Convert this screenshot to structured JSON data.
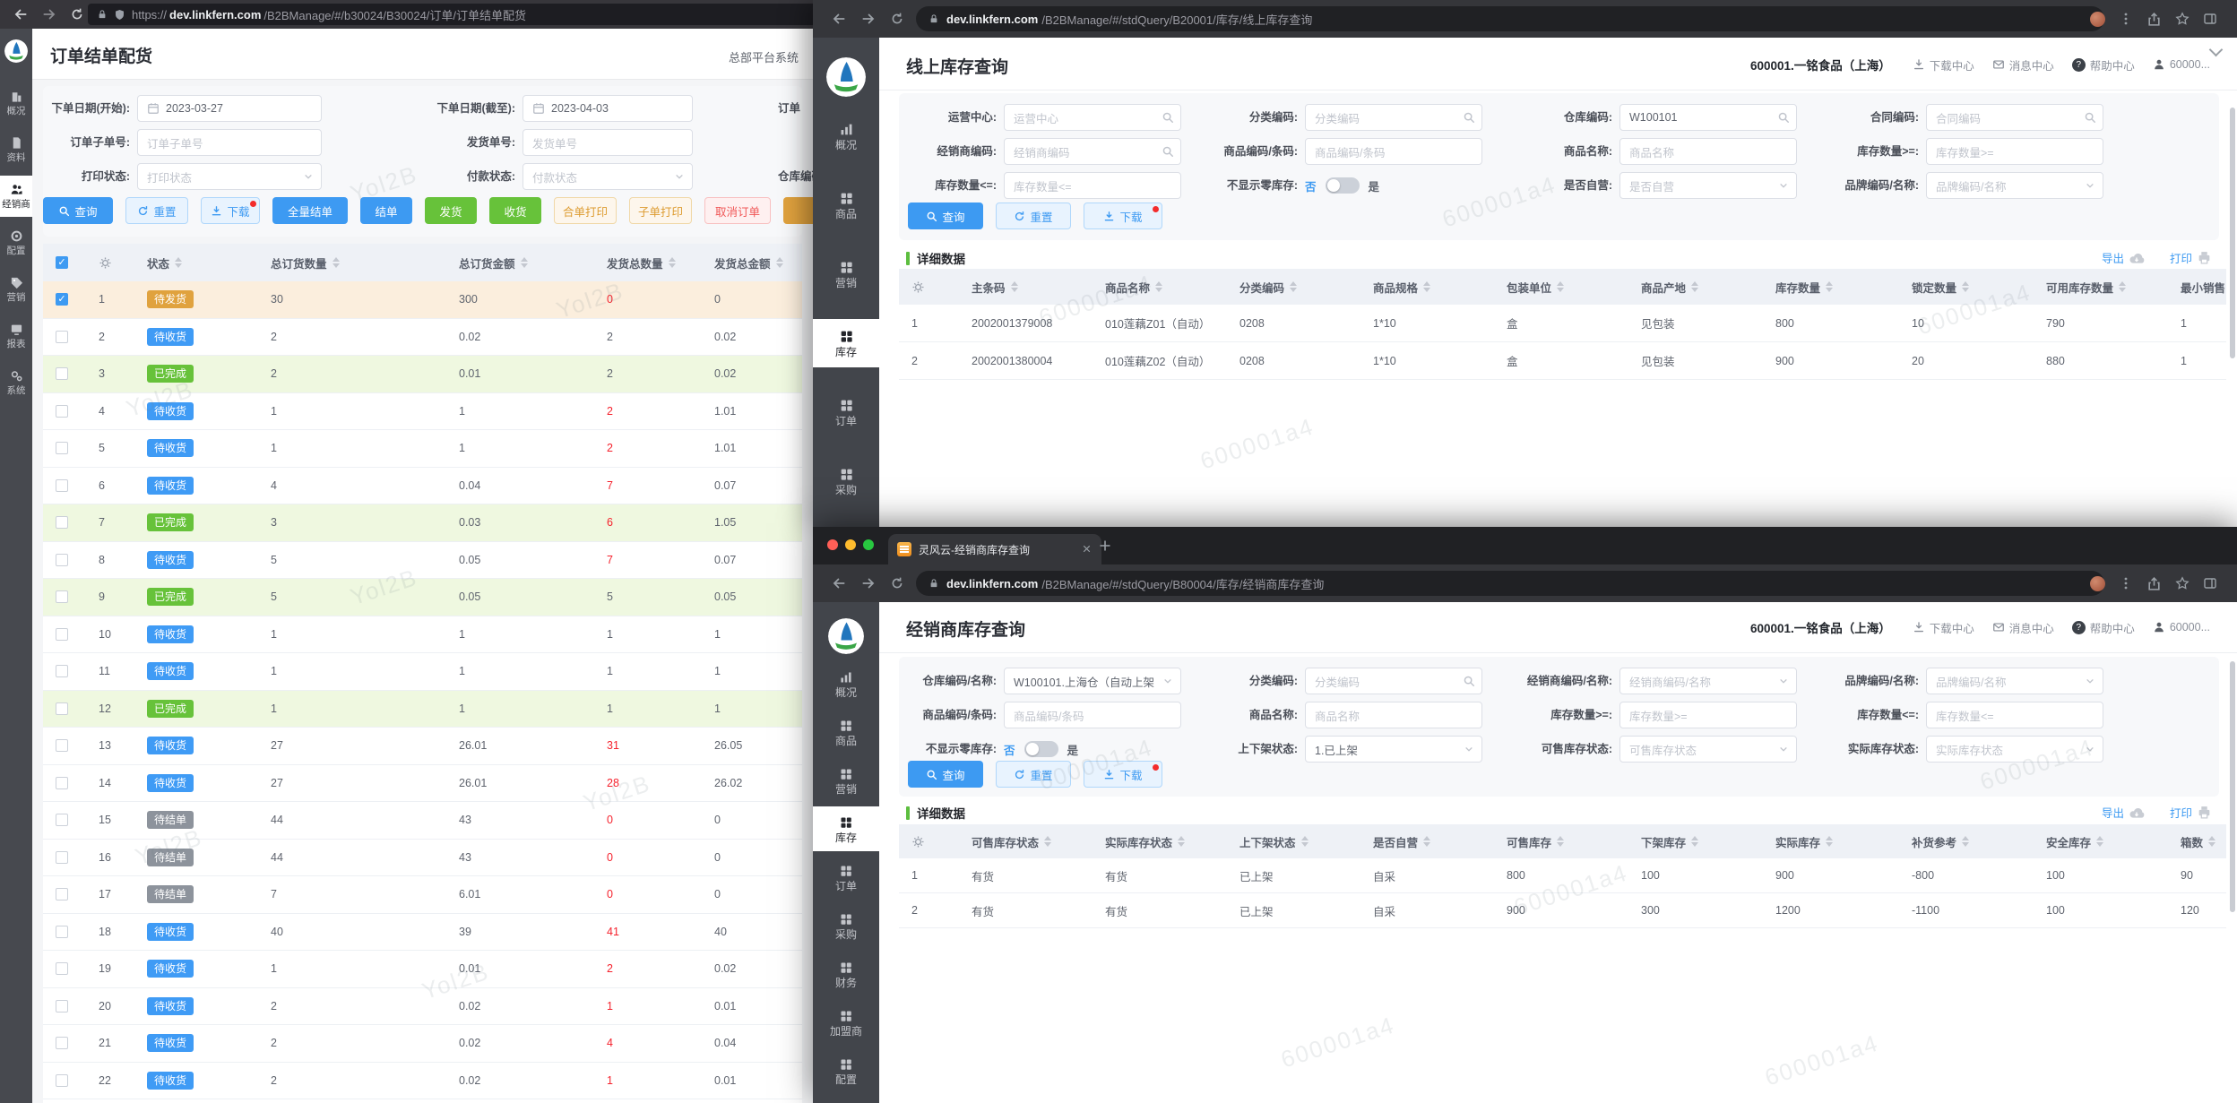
{
  "account": {
    "company": "600001.一铭食品（上海）",
    "links": [
      {
        "icon": "downloadline",
        "label": "下载中心"
      },
      {
        "icon": "mail",
        "label": "消息中心"
      },
      {
        "icon": "help",
        "label": "帮助中心"
      },
      {
        "icon": "user",
        "label": "60000..."
      }
    ]
  },
  "left": {
    "url": {
      "scheme": "https://",
      "domain": "dev.linkfern.com",
      "path": "/B2BManage/#/b30024/B30024/订单/订单结单配货"
    },
    "title": "订单结单配货",
    "header_right": "总部平台系统",
    "watermark": "Yol2B",
    "sidebar": [
      {
        "icon": "building",
        "label": "概况"
      },
      {
        "icon": "document",
        "label": "资料"
      },
      {
        "icon": "dealer",
        "label": "经销商",
        "active": true
      },
      {
        "icon": "config",
        "label": "配置"
      },
      {
        "icon": "tag",
        "label": "营销"
      },
      {
        "icon": "report",
        "label": "报表"
      },
      {
        "icon": "system",
        "label": "系统"
      }
    ],
    "filters": [
      [
        {
          "label": "下单日期(开始):",
          "type": "date",
          "value": "2023-03-27"
        },
        {
          "label": "下单日期(截至):",
          "type": "date",
          "value": "2023-04-03"
        },
        {
          "label": "订单",
          "type": "cut"
        }
      ],
      [
        {
          "label": "订单子单号:",
          "type": "text",
          "ph": "订单子单号"
        },
        {
          "label": "发货单号:",
          "type": "text",
          "ph": "发货单号"
        }
      ],
      [
        {
          "label": "打印状态:",
          "type": "select",
          "ph": "打印状态"
        },
        {
          "label": "付款状态:",
          "type": "select",
          "ph": "付款状态"
        },
        {
          "label": "仓库编码",
          "type": "cut"
        }
      ]
    ],
    "buttons": [
      {
        "label": "查询",
        "style": "primary",
        "icon": "search"
      },
      {
        "label": "重置",
        "style": "light",
        "icon": "refresh"
      },
      {
        "label": "下载",
        "style": "light",
        "icon": "download",
        "dot": true
      },
      {
        "label": "全量结单",
        "style": "primary"
      },
      {
        "label": "结单",
        "style": "primary"
      },
      {
        "label": "发货",
        "style": "success"
      },
      {
        "label": "收货",
        "style": "success"
      },
      {
        "label": "合单打印",
        "style": "warnp"
      },
      {
        "label": "子单打印",
        "style": "warnp"
      },
      {
        "label": "取消订单",
        "style": "dangerp"
      },
      {
        "label": "",
        "style": "warns"
      }
    ],
    "table": {
      "columns": [
        "状态",
        "总订货数量",
        "总订货金额",
        "发货总数量",
        "发货总金额"
      ],
      "rows": [
        {
          "n": 1,
          "checked": true,
          "bg": "sel",
          "status": "待发货",
          "tone": "warning",
          "values": [
            "30",
            "300",
            "0",
            "0"
          ],
          "red": [
            2
          ]
        },
        {
          "n": 2,
          "checked": false,
          "bg": "",
          "status": "待收货",
          "tone": "primary",
          "values": [
            "2",
            "0.02",
            "2",
            "0.02"
          ],
          "red": []
        },
        {
          "n": 3,
          "checked": false,
          "bg": "done",
          "status": "已完成",
          "tone": "success",
          "values": [
            "2",
            "0.01",
            "2",
            "0.02"
          ],
          "red": []
        },
        {
          "n": 4,
          "checked": false,
          "bg": "",
          "status": "待收货",
          "tone": "primary",
          "values": [
            "1",
            "1",
            "2",
            "1.01"
          ],
          "red": [
            2
          ]
        },
        {
          "n": 5,
          "checked": false,
          "bg": "",
          "status": "待收货",
          "tone": "primary",
          "values": [
            "1",
            "1",
            "2",
            "1.01"
          ],
          "red": [
            2
          ]
        },
        {
          "n": 6,
          "checked": false,
          "bg": "",
          "status": "待收货",
          "tone": "primary",
          "values": [
            "4",
            "0.04",
            "7",
            "0.07"
          ],
          "red": [
            2
          ]
        },
        {
          "n": 7,
          "checked": false,
          "bg": "done",
          "status": "已完成",
          "tone": "success",
          "values": [
            "3",
            "0.03",
            "6",
            "1.05"
          ],
          "red": [
            2
          ]
        },
        {
          "n": 8,
          "checked": false,
          "bg": "",
          "status": "待收货",
          "tone": "primary",
          "values": [
            "5",
            "0.05",
            "7",
            "0.07"
          ],
          "red": [
            2
          ]
        },
        {
          "n": 9,
          "checked": false,
          "bg": "done",
          "status": "已完成",
          "tone": "success",
          "values": [
            "5",
            "0.05",
            "5",
            "0.05"
          ],
          "red": []
        },
        {
          "n": 10,
          "checked": false,
          "bg": "",
          "status": "待收货",
          "tone": "primary",
          "values": [
            "1",
            "1",
            "1",
            "1"
          ],
          "red": []
        },
        {
          "n": 11,
          "checked": false,
          "bg": "",
          "status": "待收货",
          "tone": "primary",
          "values": [
            "1",
            "1",
            "1",
            "1"
          ],
          "red": []
        },
        {
          "n": 12,
          "checked": false,
          "bg": "done",
          "status": "已完成",
          "tone": "success",
          "values": [
            "1",
            "1",
            "1",
            "1"
          ],
          "red": []
        },
        {
          "n": 13,
          "checked": false,
          "bg": "",
          "status": "待收货",
          "tone": "primary",
          "values": [
            "27",
            "26.01",
            "31",
            "26.05"
          ],
          "red": [
            2
          ]
        },
        {
          "n": 14,
          "checked": false,
          "bg": "",
          "status": "待收货",
          "tone": "primary",
          "values": [
            "27",
            "26.01",
            "28",
            "26.02"
          ],
          "red": [
            2
          ]
        },
        {
          "n": 15,
          "checked": false,
          "bg": "",
          "status": "待结单",
          "tone": "info",
          "values": [
            "44",
            "43",
            "0",
            "0"
          ],
          "red": [
            2
          ]
        },
        {
          "n": 16,
          "checked": false,
          "bg": "",
          "status": "待结单",
          "tone": "info",
          "values": [
            "44",
            "43",
            "0",
            "0"
          ],
          "red": [
            2
          ]
        },
        {
          "n": 17,
          "checked": false,
          "bg": "",
          "status": "待结单",
          "tone": "info",
          "values": [
            "7",
            "6.01",
            "0",
            "0"
          ],
          "red": [
            2
          ]
        },
        {
          "n": 18,
          "checked": false,
          "bg": "",
          "status": "待收货",
          "tone": "primary",
          "values": [
            "40",
            "39",
            "41",
            "40"
          ],
          "red": [
            2
          ]
        },
        {
          "n": 19,
          "checked": false,
          "bg": "",
          "status": "待收货",
          "tone": "primary",
          "values": [
            "1",
            "0.01",
            "2",
            "0.02"
          ],
          "red": [
            2
          ]
        },
        {
          "n": 20,
          "checked": false,
          "bg": "",
          "status": "待收货",
          "tone": "primary",
          "values": [
            "2",
            "0.02",
            "1",
            "0.01"
          ],
          "red": [
            2
          ]
        },
        {
          "n": 21,
          "checked": false,
          "bg": "",
          "status": "待收货",
          "tone": "primary",
          "values": [
            "2",
            "0.02",
            "4",
            "0.04"
          ],
          "red": [
            2
          ]
        },
        {
          "n": 22,
          "checked": false,
          "bg": "",
          "status": "待收货",
          "tone": "primary",
          "values": [
            "2",
            "0.02",
            "1",
            "0.01"
          ],
          "red": [
            2
          ]
        }
      ]
    }
  },
  "top_right": {
    "url": {
      "domain": "dev.linkfern.com",
      "path": "/B2BManage/#/stdQuery/B20001/库存/线上库存查询"
    },
    "title": "线上库存查询",
    "watermark": "600001a4",
    "sidebar": [
      {
        "icon": "chart",
        "label": "概况"
      },
      {
        "icon": "grid",
        "label": "商品"
      },
      {
        "icon": "grid",
        "label": "营销"
      },
      {
        "icon": "grid",
        "label": "库存",
        "active": true
      },
      {
        "icon": "grid",
        "label": "订单"
      },
      {
        "icon": "grid",
        "label": "采购"
      }
    ],
    "filters": [
      [
        {
          "label": "运营中心:",
          "type": "search",
          "ph": "运营中心"
        },
        {
          "label": "分类编码:",
          "type": "search",
          "ph": "分类编码"
        },
        {
          "label": "仓库编码:",
          "type": "search",
          "value": "W100101"
        },
        {
          "label": "合同编码:",
          "type": "search",
          "ph": "合同编码"
        }
      ],
      [
        {
          "label": "经销商编码:",
          "type": "search",
          "ph": "经销商编码"
        },
        {
          "label": "商品编码/条码:",
          "type": "text",
          "ph": "商品编码/条码"
        },
        {
          "label": "商品名称:",
          "type": "text",
          "ph": "商品名称"
        },
        {
          "label": "库存数量>=:",
          "type": "text",
          "ph": "库存数量>="
        }
      ],
      [
        {
          "label": "库存数量<=:",
          "type": "text",
          "ph": "库存数量<="
        },
        {
          "label": "不显示零库存:",
          "type": "toggle",
          "off": "否",
          "on": "是"
        },
        {
          "label": "是否自营:",
          "type": "select",
          "ph": "是否自营"
        },
        {
          "label": "品牌编码/名称:",
          "type": "select",
          "ph": "品牌编码/名称"
        }
      ]
    ],
    "buttons": [
      {
        "label": "查询",
        "style": "primary",
        "icon": "search"
      },
      {
        "label": "重置",
        "style": "light",
        "icon": "refresh"
      },
      {
        "label": "下载",
        "style": "light",
        "icon": "download",
        "dot": true
      }
    ],
    "section": {
      "title": "详细数据",
      "export": "导出",
      "print": "打印"
    },
    "table": {
      "columns": [
        "主条码",
        "商品名称",
        "分类编码",
        "商品规格",
        "包装单位",
        "商品产地",
        "库存数量",
        "锁定数量",
        "可用库存数量",
        "最小销售"
      ],
      "rows": [
        [
          "2002001379008",
          "010莲藕Z01（自动）",
          "0208",
          "1*10",
          "盒",
          "见包装",
          "800",
          "10",
          "790",
          "1"
        ],
        [
          "2002001380004",
          "010莲藕Z02（自动）",
          "0208",
          "1*10",
          "盒",
          "见包装",
          "900",
          "20",
          "880",
          "1"
        ]
      ]
    }
  },
  "bottom_right": {
    "tab": "灵风云-经销商库存查询",
    "url": {
      "domain": "dev.linkfern.com",
      "path": "/B2BManage/#/stdQuery/B80004/库存/经销商库存查询"
    },
    "title": "经销商库存查询",
    "watermark": "600001a4",
    "sidebar": [
      {
        "icon": "chart",
        "label": "概况"
      },
      {
        "icon": "grid",
        "label": "商品"
      },
      {
        "icon": "grid",
        "label": "营销"
      },
      {
        "icon": "grid",
        "label": "库存",
        "active": true
      },
      {
        "icon": "grid",
        "label": "订单"
      },
      {
        "icon": "grid",
        "label": "采购"
      },
      {
        "icon": "grid",
        "label": "财务"
      },
      {
        "icon": "grid",
        "label": "加盟商"
      },
      {
        "icon": "grid",
        "label": "配置"
      },
      {
        "icon": "grid",
        "label": ""
      }
    ],
    "filters": [
      [
        {
          "label": "仓库编码/名称:",
          "type": "select",
          "value": "W100101.上海仓（自动上架"
        },
        {
          "label": "分类编码:",
          "type": "search",
          "ph": "分类编码"
        },
        {
          "label": "经销商编码/名称:",
          "type": "select",
          "ph": "经销商编码/名称"
        },
        {
          "label": "品牌编码/名称:",
          "type": "select",
          "ph": "品牌编码/名称"
        }
      ],
      [
        {
          "label": "商品编码/条码:",
          "type": "text",
          "ph": "商品编码/条码"
        },
        {
          "label": "商品名称:",
          "type": "text",
          "ph": "商品名称"
        },
        {
          "label": "库存数量>=:",
          "type": "text",
          "ph": "库存数量>="
        },
        {
          "label": "库存数量<=:",
          "type": "text",
          "ph": "库存数量<="
        }
      ],
      [
        {
          "label": "不显示零库存:",
          "type": "toggle",
          "off": "否",
          "on": "是"
        },
        {
          "label": "上下架状态:",
          "type": "select",
          "value": "1.已上架"
        },
        {
          "label": "可售库存状态:",
          "type": "select",
          "ph": "可售库存状态"
        },
        {
          "label": "实际库存状态:",
          "type": "select",
          "ph": "实际库存状态"
        }
      ]
    ],
    "buttons": [
      {
        "label": "查询",
        "style": "primary",
        "icon": "search"
      },
      {
        "label": "重置",
        "style": "light",
        "icon": "refresh"
      },
      {
        "label": "下载",
        "style": "light",
        "icon": "download",
        "dot": true
      }
    ],
    "section": {
      "title": "详细数据",
      "export": "导出",
      "print": "打印"
    },
    "table": {
      "columns": [
        "可售库存状态",
        "实际库存状态",
        "上下架状态",
        "是否自营",
        "可售库存",
        "下架库存",
        "实际库存",
        "补货参考",
        "安全库存",
        "箱数"
      ],
      "rows": [
        [
          "有货",
          "有货",
          "已上架",
          "自采",
          "800",
          "100",
          "900",
          "-800",
          "100",
          "90"
        ],
        [
          "有货",
          "有货",
          "已上架",
          "自采",
          "900",
          "300",
          "1200",
          "-1100",
          "100",
          "120"
        ]
      ]
    }
  }
}
